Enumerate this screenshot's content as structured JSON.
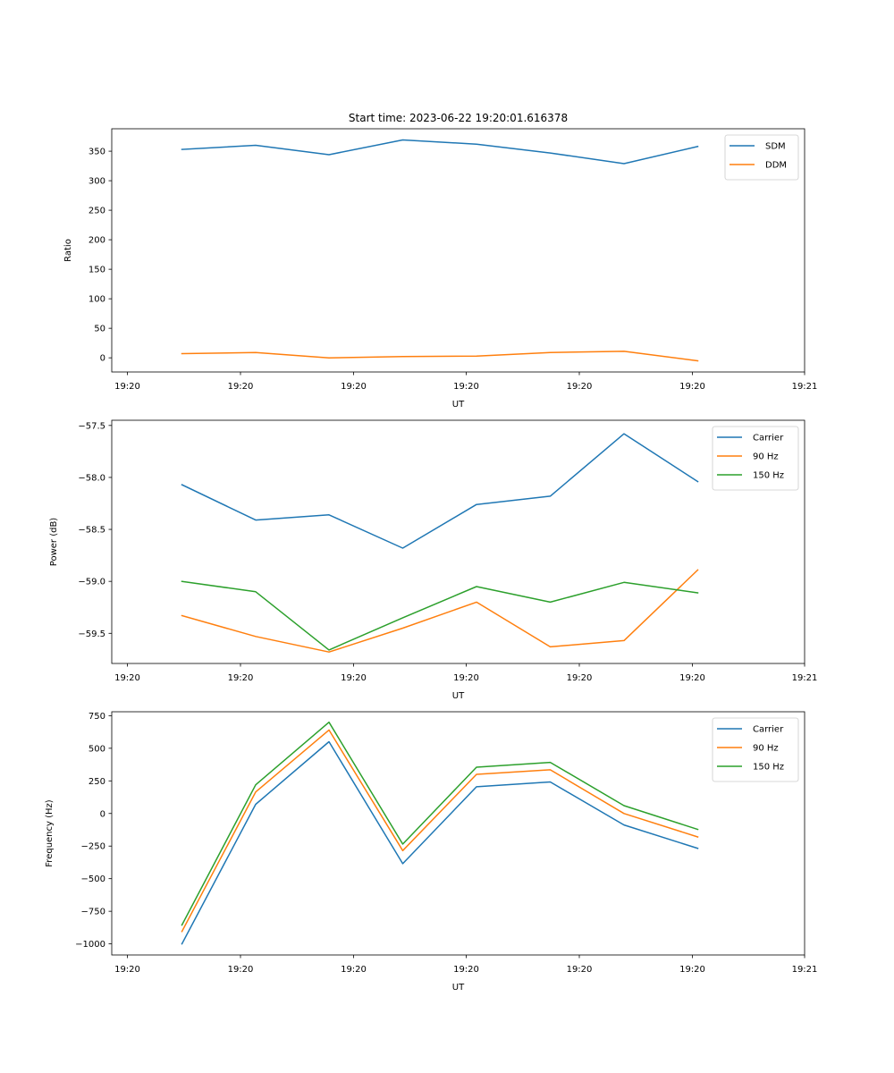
{
  "figure": {
    "title": "Start time: 2023-06-22 19:20:01.616378"
  },
  "chart_data": [
    {
      "type": "line",
      "xlabel": "UT",
      "ylabel": "Ratio",
      "x_tick_labels": [
        "19:20",
        "19:20",
        "19:20",
        "19:20",
        "19:20",
        "19:20",
        "19:21"
      ],
      "yticks": [
        0,
        50,
        100,
        150,
        200,
        250,
        300,
        350
      ],
      "ylim": [
        -24,
        388
      ],
      "grid": false,
      "legend": "top-right",
      "series": [
        {
          "name": "SDM",
          "color": "#1f77b4",
          "values": [
            353,
            360,
            344,
            369,
            362,
            347,
            329,
            358
          ]
        },
        {
          "name": "DDM",
          "color": "#ff7f0e",
          "values": [
            7,
            9,
            0,
            2,
            3,
            9,
            11,
            -5
          ]
        }
      ]
    },
    {
      "type": "line",
      "xlabel": "UT",
      "ylabel": "Power (dB)",
      "x_tick_labels": [
        "19:20",
        "19:20",
        "19:20",
        "19:20",
        "19:20",
        "19:20",
        "19:21"
      ],
      "yticks": [
        -57.5,
        -58.0,
        -58.5,
        -59.0,
        -59.5
      ],
      "ytick_labels": [
        "−57.5",
        "−58.0",
        "−58.5",
        "−59.0",
        "−59.5"
      ],
      "ylim": [
        -59.79,
        -57.45
      ],
      "grid": false,
      "legend": "top-right",
      "series": [
        {
          "name": "Carrier",
          "color": "#1f77b4",
          "values": [
            -58.07,
            -58.41,
            -58.36,
            -58.68,
            -58.26,
            -58.18,
            -57.58,
            -58.04
          ]
        },
        {
          "name": "90 Hz",
          "color": "#ff7f0e",
          "values": [
            -59.33,
            -59.53,
            -59.68,
            -59.45,
            -59.2,
            -59.63,
            -59.57,
            -58.89
          ]
        },
        {
          "name": "150 Hz",
          "color": "#2ca02c",
          "values": [
            -59.0,
            -59.1,
            -59.66,
            -59.35,
            -59.05,
            -59.2,
            -59.01,
            -59.11
          ]
        }
      ]
    },
    {
      "type": "line",
      "xlabel": "UT",
      "ylabel": "Frequency (Hz)",
      "x_tick_labels": [
        "19:20",
        "19:20",
        "19:20",
        "19:20",
        "19:20",
        "19:20",
        "19:21"
      ],
      "yticks": [
        750,
        500,
        250,
        0,
        -250,
        -500,
        -750,
        -1000
      ],
      "ytick_labels": [
        "750",
        "500",
        "250",
        "0",
        "−250",
        "−500",
        "−750",
        "−1000"
      ],
      "ylim": [
        -1085,
        780
      ],
      "grid": false,
      "legend": "top-right",
      "series": [
        {
          "name": "Carrier",
          "color": "#1f77b4",
          "values": [
            -1000,
            70,
            550,
            -385,
            205,
            242,
            -88,
            -268
          ]
        },
        {
          "name": "90 Hz",
          "color": "#ff7f0e",
          "values": [
            -905,
            165,
            640,
            -285,
            300,
            335,
            0,
            -180
          ]
        },
        {
          "name": "150 Hz",
          "color": "#2ca02c",
          "values": [
            -855,
            220,
            700,
            -235,
            355,
            392,
            60,
            -122
          ]
        }
      ]
    }
  ]
}
